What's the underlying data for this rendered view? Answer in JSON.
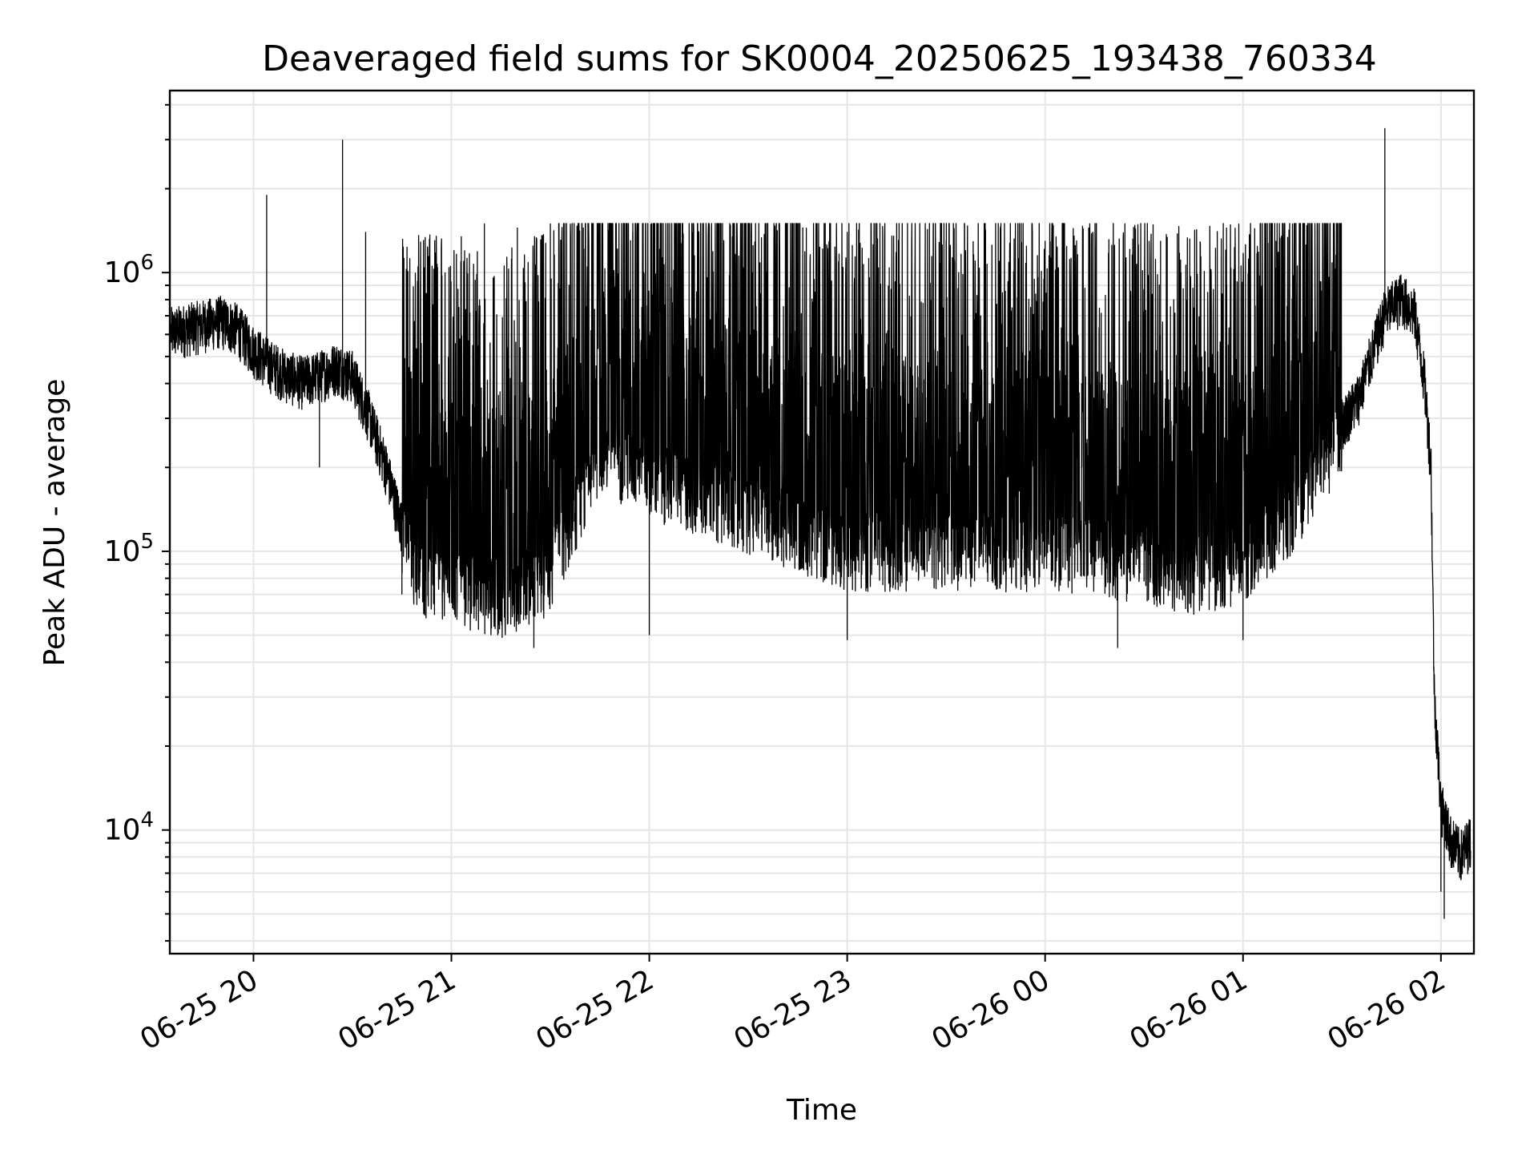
{
  "chart_data": {
    "type": "line",
    "title": "Deaveraged field sums for SK0004_20250625_193438_760334",
    "xlabel": "Time",
    "ylabel": "Peak ADU - average",
    "yscale": "log",
    "grid": true,
    "xlim": [
      "2025-06-25 19:34:38",
      "2025-06-26 02:10:00"
    ],
    "ylim": [
      3600,
      4500000
    ],
    "x_ticks": [
      {
        "t": "2025-06-25 20:00",
        "label": "06-25 20"
      },
      {
        "t": "2025-06-25 21:00",
        "label": "06-25 21"
      },
      {
        "t": "2025-06-25 22:00",
        "label": "06-25 22"
      },
      {
        "t": "2025-06-25 23:00",
        "label": "06-25 23"
      },
      {
        "t": "2025-06-26 00:00",
        "label": "06-26 00"
      },
      {
        "t": "2025-06-26 01:00",
        "label": "06-26 01"
      },
      {
        "t": "2025-06-26 02:00",
        "label": "06-26 02"
      }
    ],
    "y_ticks": [
      {
        "value": 10000,
        "base": "10",
        "exp": "4"
      },
      {
        "value": 100000,
        "base": "10",
        "exp": "5"
      },
      {
        "value": 1000000,
        "base": "10",
        "exp": "6"
      }
    ],
    "series": [
      {
        "color": "#000000",
        "points": [
          [
            "2025-06-25 19:35",
            600000
          ],
          [
            "2025-06-25 19:40",
            620000
          ],
          [
            "2025-06-25 19:45",
            640000
          ],
          [
            "2025-06-25 19:50",
            660000
          ],
          [
            "2025-06-25 19:55",
            620000
          ],
          [
            "2025-06-25 20:00",
            520000
          ],
          [
            "2025-06-25 20:05",
            460000
          ],
          [
            "2025-06-25 20:10",
            420000
          ],
          [
            "2025-06-25 20:15",
            400000
          ],
          [
            "2025-06-25 20:20",
            420000
          ],
          [
            "2025-06-25 20:25",
            450000
          ],
          [
            "2025-06-25 20:30",
            420000
          ],
          [
            "2025-06-25 20:35",
            300000
          ],
          [
            "2025-06-25 20:40",
            200000
          ],
          [
            "2025-06-25 20:45",
            120000
          ],
          [
            "2025-06-25 20:50",
            90000
          ],
          [
            "2025-06-25 21:00",
            80000
          ],
          [
            "2025-06-25 21:15",
            75000
          ],
          [
            "2025-06-25 21:30",
            90000
          ],
          [
            "2025-06-25 21:45",
            250000
          ],
          [
            "2025-06-25 22:00",
            200000
          ],
          [
            "2025-06-25 22:30",
            150000
          ],
          [
            "2025-06-25 23:00",
            110000
          ],
          [
            "2025-06-25 23:30",
            110000
          ],
          [
            "2025-06-26 00:00",
            110000
          ],
          [
            "2025-06-26 00:30",
            100000
          ],
          [
            "2025-06-26 00:45",
            90000
          ],
          [
            "2025-06-26 01:00",
            100000
          ],
          [
            "2025-06-26 01:15",
            150000
          ],
          [
            "2025-06-26 01:25",
            230000
          ],
          [
            "2025-06-26 01:35",
            350000
          ],
          [
            "2025-06-26 01:43",
            700000
          ],
          [
            "2025-06-26 01:48",
            800000
          ],
          [
            "2025-06-26 01:52",
            700000
          ],
          [
            "2025-06-26 01:55",
            400000
          ],
          [
            "2025-06-26 01:57",
            200000
          ],
          [
            "2025-06-26 01:58",
            30000
          ],
          [
            "2025-06-26 02:00",
            12000
          ],
          [
            "2025-06-26 02:03",
            9000
          ],
          [
            "2025-06-26 02:06",
            8000
          ],
          [
            "2025-06-26 02:09",
            9000
          ]
        ],
        "spikes": [
          [
            "2025-06-25 20:04",
            1900000
          ],
          [
            "2025-06-25 20:27",
            3000000
          ],
          [
            "2025-06-25 20:34",
            1400000
          ],
          [
            "2025-06-25 21:03",
            1350000
          ],
          [
            "2025-06-25 21:10",
            1500000
          ],
          [
            "2025-06-25 21:20",
            1450000
          ],
          [
            "2025-06-25 21:30",
            1500000
          ],
          [
            "2025-06-25 21:40",
            1450000
          ],
          [
            "2025-06-25 21:55",
            1400000
          ],
          [
            "2025-06-25 22:10",
            1400000
          ],
          [
            "2025-06-25 22:30",
            1350000
          ],
          [
            "2025-06-25 23:00",
            1400000
          ],
          [
            "2025-06-25 23:30",
            1300000
          ],
          [
            "2025-06-26 00:00",
            1300000
          ],
          [
            "2025-06-26 00:35",
            1300000
          ],
          [
            "2025-06-26 00:55",
            1450000
          ],
          [
            "2025-06-26 01:10",
            1300000
          ],
          [
            "2025-06-26 01:43",
            3300000
          ]
        ],
        "dips": [
          [
            "2025-06-25 20:20",
            200000
          ],
          [
            "2025-06-25 20:45",
            70000
          ],
          [
            "2025-06-25 21:25",
            45000
          ],
          [
            "2025-06-25 22:00",
            50000
          ],
          [
            "2025-06-25 23:00",
            48000
          ],
          [
            "2025-06-26 00:22",
            45000
          ],
          [
            "2025-06-26 01:00",
            48000
          ],
          [
            "2025-06-26 02:00",
            6000
          ],
          [
            "2025-06-26 02:01",
            4800
          ]
        ]
      }
    ]
  }
}
